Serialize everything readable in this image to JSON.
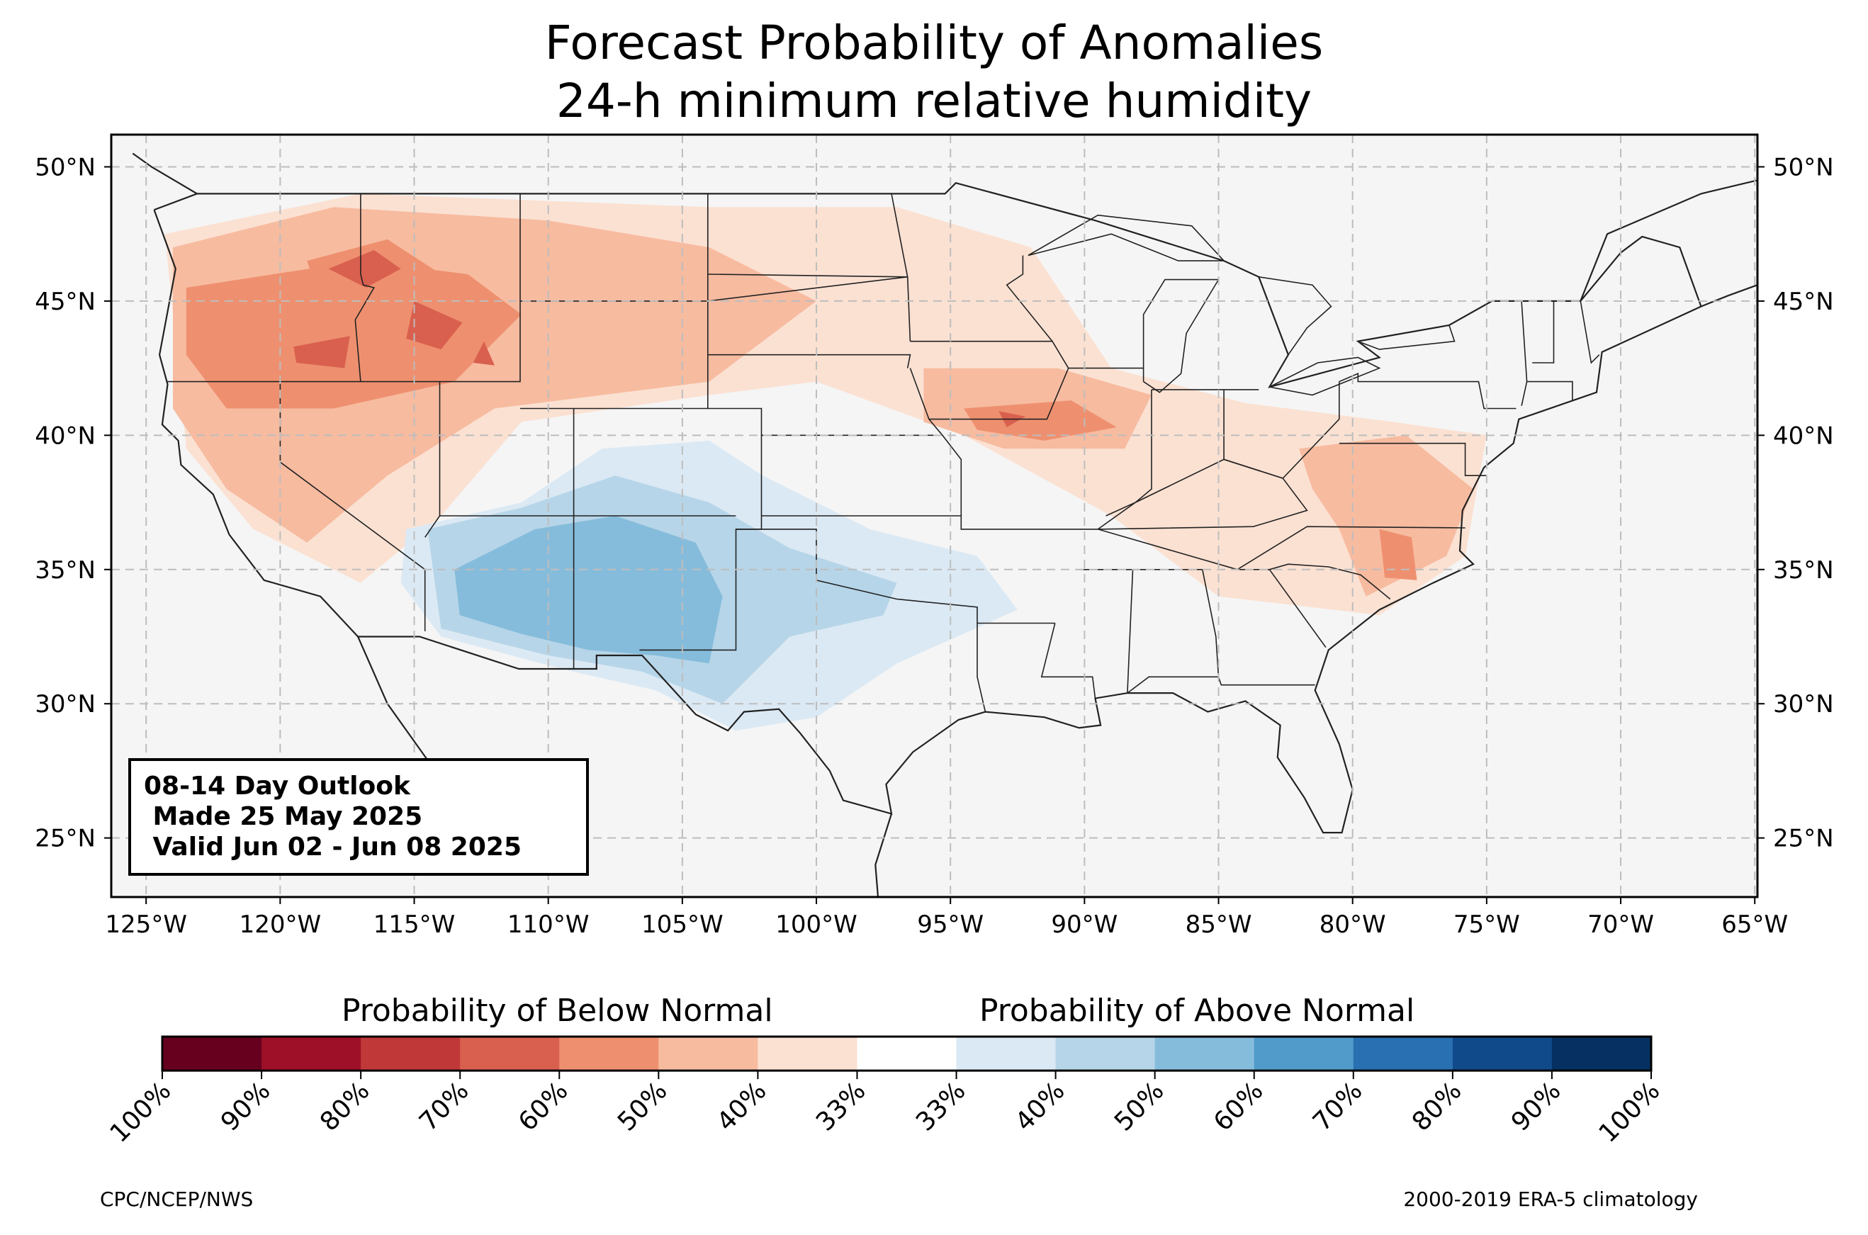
{
  "title": {
    "line1": "Forecast Probability of Anomalies",
    "line2": "24-h minimum relative humidity"
  },
  "map": {
    "projection": "PlateCarree",
    "lon_range": [
      -126.3,
      -64.9
    ],
    "lat_range": [
      22.8,
      51.2
    ],
    "lon_ticks": [
      -125,
      -120,
      -115,
      -110,
      -105,
      -100,
      -95,
      -90,
      -85,
      -80,
      -75,
      -70,
      -65
    ],
    "lon_tick_labels": [
      "125°W",
      "120°W",
      "115°W",
      "110°W",
      "105°W",
      "100°W",
      "95°W",
      "90°W",
      "85°W",
      "80°W",
      "75°W",
      "70°W",
      "65°W"
    ],
    "lat_ticks": [
      50,
      45,
      40,
      35,
      30,
      25
    ],
    "lat_tick_labels": [
      "50°N",
      "45°N",
      "40°N",
      "35°N",
      "30°N",
      "25°N"
    ],
    "gridlines": true,
    "land_color": "#f5f5f5"
  },
  "outlook_box": {
    "line1": "08-14 Day Outlook",
    "line2": " Made 25 May 2025",
    "line3": " Valid Jun 02 - Jun 08 2025"
  },
  "colorbar": {
    "heading_below": "Probability of Below Normal",
    "heading_above": "Probability of Above Normal",
    "tick_labels": [
      "100%",
      "90%",
      "80%",
      "70%",
      "60%",
      "50%",
      "40%",
      "33%",
      "33%",
      "40%",
      "50%",
      "60%",
      "70%",
      "80%",
      "90%",
      "100%"
    ],
    "colors": [
      "#67001f",
      "#9e0f28",
      "#c13838",
      "#d9604f",
      "#ee906f",
      "#f7bba0",
      "#fbe1d2",
      "#ffffff",
      "#dbe9f4",
      "#b6d5e8",
      "#86bcdb",
      "#509bc9",
      "#2870b1",
      "#114a8a",
      "#053061"
    ]
  },
  "anomaly_regions": [
    {
      "category": "below",
      "level": 40,
      "polygon": [
        [
          -124.3,
          47.5
        ],
        [
          -117,
          49
        ],
        [
          -104,
          48.5
        ],
        [
          -97,
          48.5
        ],
        [
          -92,
          47
        ],
        [
          -89,
          42.5
        ],
        [
          -84,
          41.2
        ],
        [
          -78.5,
          40.5
        ],
        [
          -75,
          40
        ],
        [
          -75.8,
          35.5
        ],
        [
          -79,
          33.3
        ],
        [
          -85,
          34
        ],
        [
          -89,
          37
        ],
        [
          -94.5,
          40
        ],
        [
          -100,
          42
        ],
        [
          -104,
          41.5
        ],
        [
          -111,
          40.5
        ],
        [
          -114,
          37
        ],
        [
          -117,
          34.5
        ],
        [
          -121,
          36.5
        ],
        [
          -123.5,
          39.5
        ]
      ]
    },
    {
      "category": "below",
      "level": 50,
      "polygon": [
        [
          -124,
          47
        ],
        [
          -118,
          48.5
        ],
        [
          -110,
          48
        ],
        [
          -104,
          47
        ],
        [
          -100,
          45
        ],
        [
          -104,
          42
        ],
        [
          -112,
          41
        ],
        [
          -116,
          38.5
        ],
        [
          -119,
          36
        ],
        [
          -122,
          38
        ],
        [
          -124,
          41
        ]
      ]
    },
    {
      "category": "below",
      "level": 50,
      "polygon": [
        [
          -96,
          42.5
        ],
        [
          -91,
          42.5
        ],
        [
          -87.5,
          41.5
        ],
        [
          -88.5,
          39.5
        ],
        [
          -93,
          39.5
        ],
        [
          -96,
          40.5
        ]
      ]
    },
    {
      "category": "below",
      "level": 50,
      "polygon": [
        [
          -82,
          39.5
        ],
        [
          -78,
          40
        ],
        [
          -75.5,
          38
        ],
        [
          -76.5,
          35.5
        ],
        [
          -79.5,
          34
        ],
        [
          -80.5,
          36.5
        ],
        [
          -81.5,
          38
        ]
      ]
    },
    {
      "category": "below",
      "level": 60,
      "polygon": [
        [
          -123.5,
          45.5
        ],
        [
          -117,
          46.5
        ],
        [
          -113,
          46
        ],
        [
          -111,
          44.5
        ],
        [
          -113.5,
          42
        ],
        [
          -118,
          41
        ],
        [
          -122,
          41
        ],
        [
          -123.5,
          43
        ]
      ]
    },
    {
      "category": "below",
      "level": 60,
      "polygon": [
        [
          -119,
          46.5
        ],
        [
          -116,
          47.3
        ],
        [
          -114,
          46
        ],
        [
          -115.5,
          44.5
        ],
        [
          -118.5,
          45
        ]
      ]
    },
    {
      "category": "below",
      "level": 60,
      "polygon": [
        [
          -94.5,
          41
        ],
        [
          -90.5,
          41.3
        ],
        [
          -88.8,
          40.3
        ],
        [
          -91.5,
          39.8
        ],
        [
          -94,
          40.2
        ]
      ]
    },
    {
      "category": "below",
      "level": 60,
      "polygon": [
        [
          -79,
          36.5
        ],
        [
          -77.8,
          36.2
        ],
        [
          -77.6,
          34.6
        ],
        [
          -78.8,
          34.7
        ]
      ]
    },
    {
      "category": "below",
      "level": 70,
      "polygon": [
        [
          -118.2,
          46.2
        ],
        [
          -116.5,
          46.9
        ],
        [
          -115.5,
          46.2
        ],
        [
          -116.8,
          45.5
        ]
      ]
    },
    {
      "category": "below",
      "level": 70,
      "polygon": [
        [
          -115,
          45
        ],
        [
          -113.2,
          44.2
        ],
        [
          -114,
          43.2
        ],
        [
          -115.3,
          43.6
        ]
      ]
    },
    {
      "category": "below",
      "level": 70,
      "polygon": [
        [
          -119.5,
          43.3
        ],
        [
          -117.4,
          43.7
        ],
        [
          -117.6,
          42.5
        ],
        [
          -119.4,
          42.7
        ]
      ]
    },
    {
      "category": "below",
      "level": 70,
      "polygon": [
        [
          -112.4,
          43.5
        ],
        [
          -112,
          42.6
        ],
        [
          -112.8,
          42.7
        ]
      ]
    },
    {
      "category": "below",
      "level": 70,
      "polygon": [
        [
          -93.2,
          40.9
        ],
        [
          -92.2,
          40.7
        ],
        [
          -92.9,
          40.3
        ]
      ]
    },
    {
      "category": "above",
      "level": 40,
      "polygon": [
        [
          -115.3,
          36.5
        ],
        [
          -111,
          37.5
        ],
        [
          -108,
          39.5
        ],
        [
          -104,
          39.8
        ],
        [
          -102,
          38.5
        ],
        [
          -98,
          36.5
        ],
        [
          -94,
          35.5
        ],
        [
          -92.5,
          33.5
        ],
        [
          -97,
          31.5
        ],
        [
          -100,
          29.5
        ],
        [
          -103,
          29
        ],
        [
          -106,
          30.5
        ],
        [
          -109.5,
          31.3
        ],
        [
          -114,
          32.5
        ],
        [
          -115.5,
          34.5
        ]
      ]
    },
    {
      "category": "above",
      "level": 50,
      "polygon": [
        [
          -114.5,
          36.5
        ],
        [
          -111,
          37.3
        ],
        [
          -107.5,
          38.5
        ],
        [
          -104,
          37.5
        ],
        [
          -101,
          35.8
        ],
        [
          -97,
          34.5
        ],
        [
          -97.5,
          33.3
        ],
        [
          -101,
          32.5
        ],
        [
          -103.5,
          30
        ],
        [
          -106.5,
          31.2
        ],
        [
          -110,
          31.8
        ],
        [
          -114,
          32.8
        ]
      ]
    },
    {
      "category": "above",
      "level": 60,
      "polygon": [
        [
          -113.5,
          35
        ],
        [
          -110.5,
          36.5
        ],
        [
          -107.5,
          37
        ],
        [
          -104.5,
          36
        ],
        [
          -103.5,
          34
        ],
        [
          -104,
          31.5
        ],
        [
          -106,
          31.8
        ],
        [
          -108.5,
          32
        ],
        [
          -111,
          32.6
        ],
        [
          -113.3,
          33.3
        ]
      ]
    }
  ],
  "footer": {
    "left": "CPC/NCEP/NWS",
    "right": "2000-2019 ERA-5 climatology"
  }
}
